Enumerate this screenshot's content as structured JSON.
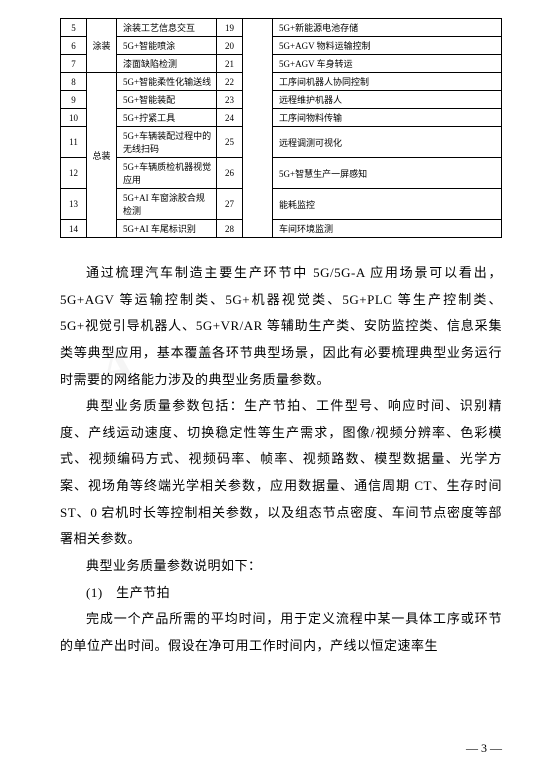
{
  "table": {
    "rows": [
      {
        "n1": "5",
        "cat": "",
        "d1": "涂装工艺信息交互",
        "n2": "19",
        "blank": "",
        "d2": "5G+新能源电池存储"
      },
      {
        "n1": "6",
        "cat": "涂装",
        "d1": "5G+智能喷涂",
        "n2": "20",
        "blank": "",
        "d2": "5G+AGV 物料运输控制"
      },
      {
        "n1": "7",
        "cat": "",
        "d1": "漆面缺陷检测",
        "n2": "21",
        "blank": "",
        "d2": "5G+AGV 车身转运"
      },
      {
        "n1": "8",
        "cat": "",
        "d1": "5G+智能柔性化输送线",
        "n2": "22",
        "blank": "",
        "d2": "工序间机器人协同控制"
      },
      {
        "n1": "9",
        "cat": "",
        "d1": "5G+智能装配",
        "n2": "23",
        "blank": "",
        "d2": "远程维护机器人"
      },
      {
        "n1": "10",
        "cat": "",
        "d1": "5G+拧紧工具",
        "n2": "24",
        "blank": "",
        "d2": "工序间物料传输"
      },
      {
        "n1": "11",
        "cat": "总装",
        "d1": "5G+车辆装配过程中的无线扫码",
        "n2": "25",
        "blank": "",
        "d2": "远程调测可视化"
      },
      {
        "n1": "12",
        "cat": "",
        "d1": "5G+车辆质检机器视觉应用",
        "n2": "26",
        "blank": "",
        "d2": "5G+智慧生产一屏感知"
      },
      {
        "n1": "13",
        "cat": "",
        "d1": "5G+AI 车窗涂胶合规检测",
        "n2": "27",
        "blank": "",
        "d2": "能耗监控"
      },
      {
        "n1": "14",
        "cat": "",
        "d1": "5G+AI 车尾标识别",
        "n2": "28",
        "blank": "",
        "d2": "车间环境监测"
      }
    ],
    "cat1_span": 3,
    "cat2_span": 7
  },
  "paragraphs": {
    "p1": "通过梳理汽车制造主要生产环节中 5G/5G-A 应用场景可以看出，5G+AGV 等运输控制类、5G+机器视觉类、5G+PLC 等生产控制类、5G+视觉引导机器人、5G+VR/AR 等辅助生产类、安防监控类、信息采集类等典型应用，基本覆盖各环节典型场景，因此有必要梳理典型业务运行时需要的网络能力涉及的典型业务质量参数。",
    "p2": "典型业务质量参数包括：生产节拍、工件型号、响应时间、识别精度、产线运动速度、切换稳定性等生产需求，图像/视频分辨率、色彩模式、视频编码方式、视频码率、帧率、视频路数、模型数据量、光学方案、视场角等终端光学相关参数，应用数据量、通信周期 CT、生存时间 ST、0 宕机时长等控制相关参数，以及组态节点密度、车间节点密度等部署相关参数。",
    "p3": "典型业务质量参数说明如下：",
    "p4": "(1)　生产节拍",
    "p5": "完成一个产品所需的平均时间，用于定义流程中某一具体工序或环节的单位产出时间。假设在净可用工作时间内，产线以恒定速率生"
  },
  "pageNum": "— 3 —"
}
